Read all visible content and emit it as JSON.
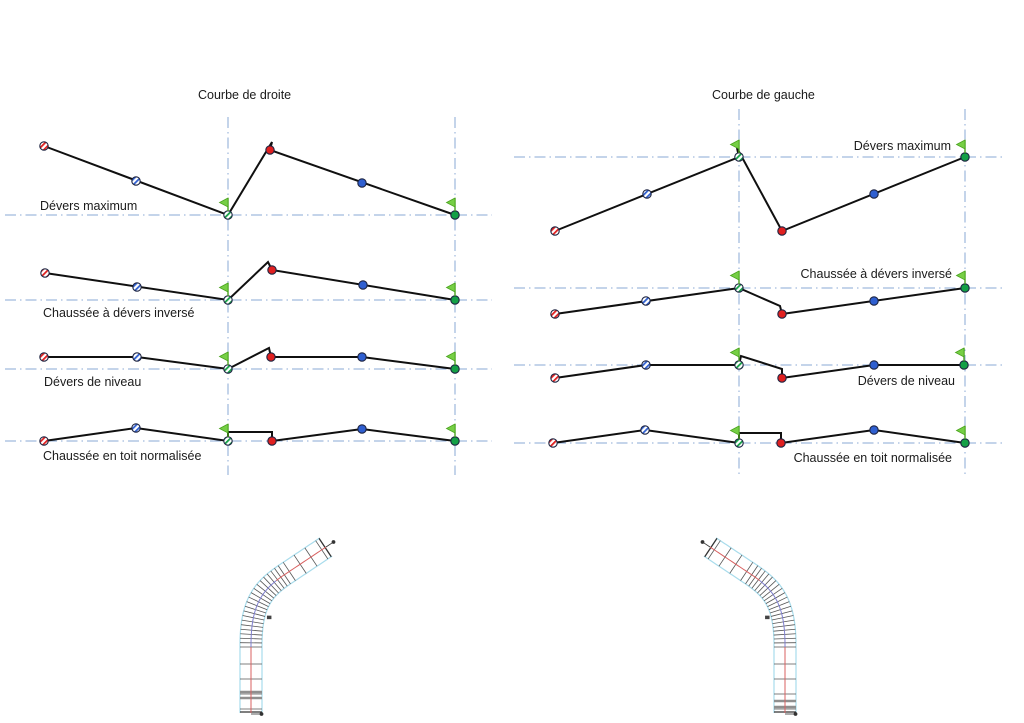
{
  "panels": {
    "left": {
      "title": "Courbe de droite",
      "labels": {
        "devers_maximum": "Dévers maximum",
        "devers_inverse": "Chaussée à dévers inversé",
        "devers_niveau": "Dévers de niveau",
        "toit_normalisee": "Chaussée en toit normalisée"
      }
    },
    "right": {
      "title": "Courbe de gauche",
      "labels": {
        "devers_maximum": "Dévers maximum",
        "devers_inverse": "Chaussée à dévers inversé",
        "devers_niveau": "Dévers de niveau",
        "toit_normalisee": "Chaussée en toit normalisée"
      }
    }
  },
  "colors": {
    "axis_line": "#89a8d4",
    "profile_line": "#101010",
    "marker_red": "#e02020",
    "marker_blue": "#2f5fd0",
    "marker_green": "#14a046",
    "marker_outline": "#1c2340",
    "flag_green": "#76cf45",
    "flag_edge": "#4aa31e",
    "road_edge": "#a8dcec",
    "road_centerline": "#d86060",
    "road_transition": "#8080d0",
    "road_tick": "#555555",
    "text": "#1b1b1b"
  },
  "icons": {
    "critical_station": "green-flag-icon",
    "begin_marker": "red-hatched-circle",
    "mid_marker": "blue-hatched-circle",
    "end_marker": "green-hatched-circle"
  }
}
